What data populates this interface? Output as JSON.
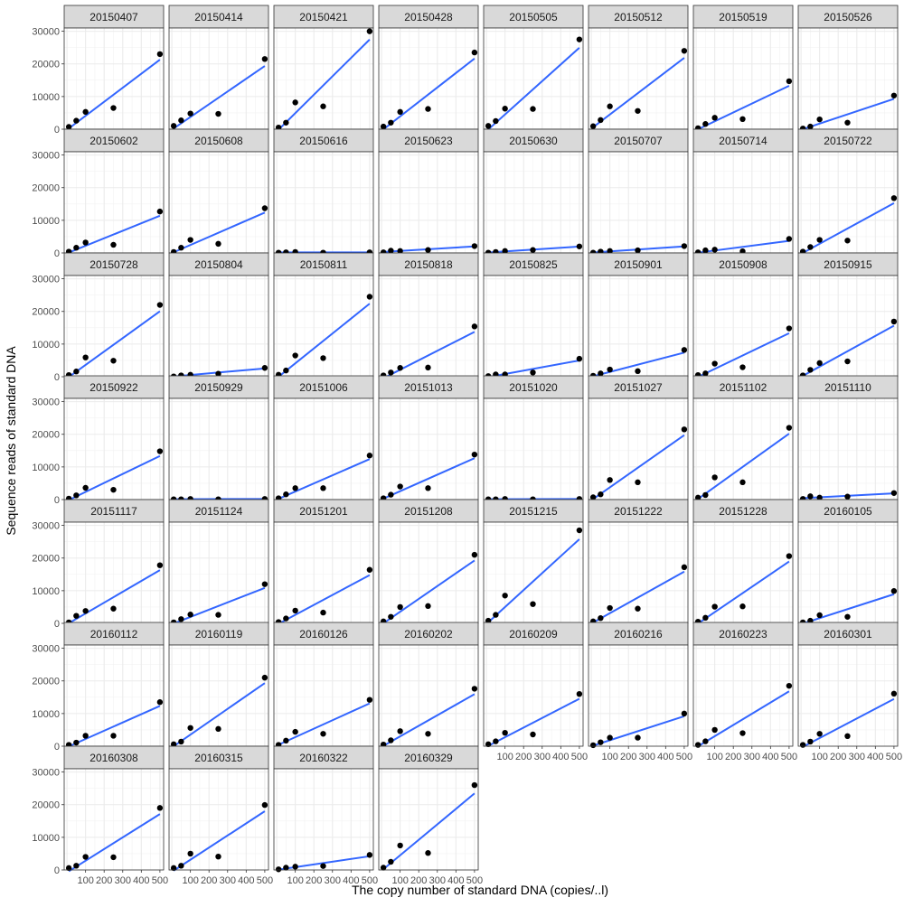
{
  "chart_data": {
    "type": "scatter",
    "xlabel": "The copy number of standard DNA (copies/..l)",
    "ylabel": "Sequence reads of standard DNA",
    "x": [
      10,
      50,
      100,
      250,
      500
    ],
    "ylim": [
      0,
      31000
    ],
    "xlim": [
      -15,
      520
    ],
    "y_ticks": [
      0,
      10000,
      20000,
      30000
    ],
    "x_ticks": [
      100,
      200,
      300,
      400,
      500
    ],
    "x_tick_labels": [
      "100",
      "200",
      "300",
      "400",
      "500"
    ],
    "fit_line_color": "#3366FF",
    "point_color": "#000000",
    "strip_fill": "#D9D9D9",
    "panels": [
      {
        "label": "20150407",
        "y": [
          700,
          2600,
          5300,
          6500,
          23000
        ]
      },
      {
        "label": "20150414",
        "y": [
          1000,
          2700,
          4800,
          4700,
          21500
        ]
      },
      {
        "label": "20150421",
        "y": [
          500,
          2000,
          8200,
          7000,
          30000
        ]
      },
      {
        "label": "20150428",
        "y": [
          800,
          2000,
          5300,
          6200,
          23500
        ]
      },
      {
        "label": "20150505",
        "y": [
          1000,
          2500,
          6300,
          6200,
          27500
        ]
      },
      {
        "label": "20150512",
        "y": [
          900,
          2800,
          7000,
          5600,
          24000
        ]
      },
      {
        "label": "20150519",
        "y": [
          300,
          1600,
          3500,
          3100,
          14700
        ]
      },
      {
        "label": "20150526",
        "y": [
          200,
          800,
          3000,
          2000,
          10300
        ]
      },
      {
        "label": "20150602",
        "y": [
          400,
          1600,
          3200,
          2500,
          12700
        ]
      },
      {
        "label": "20150608",
        "y": [
          300,
          1600,
          4000,
          2800,
          13700
        ]
      },
      {
        "label": "20150616",
        "y": [
          100,
          200,
          300,
          100,
          200
        ]
      },
      {
        "label": "20150623",
        "y": [
          200,
          700,
          600,
          900,
          2100
        ]
      },
      {
        "label": "20150630",
        "y": [
          100,
          300,
          600,
          900,
          2000
        ]
      },
      {
        "label": "20150707",
        "y": [
          100,
          400,
          600,
          800,
          2100
        ]
      },
      {
        "label": "20150714",
        "y": [
          200,
          800,
          1000,
          500,
          4300
        ]
      },
      {
        "label": "20150722",
        "y": [
          400,
          1800,
          4000,
          3800,
          16800
        ]
      },
      {
        "label": "20150728",
        "y": [
          500,
          1600,
          5900,
          4900,
          22000
        ]
      },
      {
        "label": "20150804",
        "y": [
          100,
          400,
          600,
          900,
          2700
        ]
      },
      {
        "label": "20150811",
        "y": [
          600,
          1900,
          6500,
          5700,
          24500
        ]
      },
      {
        "label": "20150818",
        "y": [
          400,
          1300,
          2700,
          2800,
          15400
        ]
      },
      {
        "label": "20150825",
        "y": [
          200,
          700,
          700,
          1300,
          5500
        ]
      },
      {
        "label": "20150901",
        "y": [
          300,
          1000,
          2200,
          1700,
          8200
        ]
      },
      {
        "label": "20150908",
        "y": [
          500,
          1000,
          4000,
          2900,
          14800
        ]
      },
      {
        "label": "20150915",
        "y": [
          400,
          2100,
          4200,
          4700,
          16900
        ]
      },
      {
        "label": "20150922",
        "y": [
          300,
          1300,
          3600,
          3000,
          14800
        ]
      },
      {
        "label": "20150929",
        "y": [
          100,
          100,
          200,
          100,
          200
        ]
      },
      {
        "label": "20151006",
        "y": [
          400,
          1600,
          3500,
          3500,
          13500
        ]
      },
      {
        "label": "20151013",
        "y": [
          400,
          1500,
          4000,
          3500,
          13800
        ]
      },
      {
        "label": "20151020",
        "y": [
          100,
          100,
          200,
          100,
          200
        ]
      },
      {
        "label": "20151027",
        "y": [
          700,
          1600,
          6000,
          5300,
          21500
        ]
      },
      {
        "label": "20151102",
        "y": [
          600,
          1400,
          6800,
          5300,
          22000
        ]
      },
      {
        "label": "20151110",
        "y": [
          200,
          1000,
          600,
          900,
          2000
        ]
      },
      {
        "label": "20151117",
        "y": [
          300,
          2300,
          3800,
          4500,
          17800
        ]
      },
      {
        "label": "20151124",
        "y": [
          300,
          1300,
          2700,
          2600,
          12000
        ]
      },
      {
        "label": "20151201",
        "y": [
          400,
          1500,
          3900,
          3300,
          16400
        ]
      },
      {
        "label": "20151208",
        "y": [
          600,
          2000,
          5000,
          5300,
          21000
        ]
      },
      {
        "label": "20151215",
        "y": [
          800,
          2600,
          8500,
          5900,
          28500
        ]
      },
      {
        "label": "20151222",
        "y": [
          600,
          1600,
          4700,
          4500,
          17200
        ]
      },
      {
        "label": "20151228",
        "y": [
          500,
          1700,
          5100,
          5200,
          20600
        ]
      },
      {
        "label": "20160105",
        "y": [
          300,
          800,
          2500,
          2000,
          9900
        ]
      },
      {
        "label": "20160112",
        "y": [
          400,
          1100,
          3200,
          3200,
          13500
        ]
      },
      {
        "label": "20160119",
        "y": [
          600,
          1400,
          5600,
          5300,
          21000
        ]
      },
      {
        "label": "20160126",
        "y": [
          400,
          1700,
          4400,
          3800,
          14200
        ]
      },
      {
        "label": "20160202",
        "y": [
          500,
          1800,
          4600,
          3800,
          17600
        ]
      },
      {
        "label": "20160209",
        "y": [
          600,
          1500,
          4100,
          3600,
          16000
        ]
      },
      {
        "label": "20160216",
        "y": [
          300,
          1200,
          2600,
          2600,
          10000
        ]
      },
      {
        "label": "20160223",
        "y": [
          400,
          1500,
          5000,
          4000,
          18500
        ]
      },
      {
        "label": "20160301",
        "y": [
          400,
          1400,
          3800,
          3100,
          16100
        ]
      },
      {
        "label": "20160308",
        "y": [
          600,
          1300,
          4000,
          3900,
          19000
        ]
      },
      {
        "label": "20160315",
        "y": [
          600,
          1300,
          5000,
          4100,
          19900
        ]
      },
      {
        "label": "20160322",
        "y": [
          200,
          700,
          1000,
          1200,
          4600
        ]
      },
      {
        "label": "20160329",
        "y": [
          700,
          2500,
          7500,
          5200,
          26000
        ]
      }
    ]
  }
}
